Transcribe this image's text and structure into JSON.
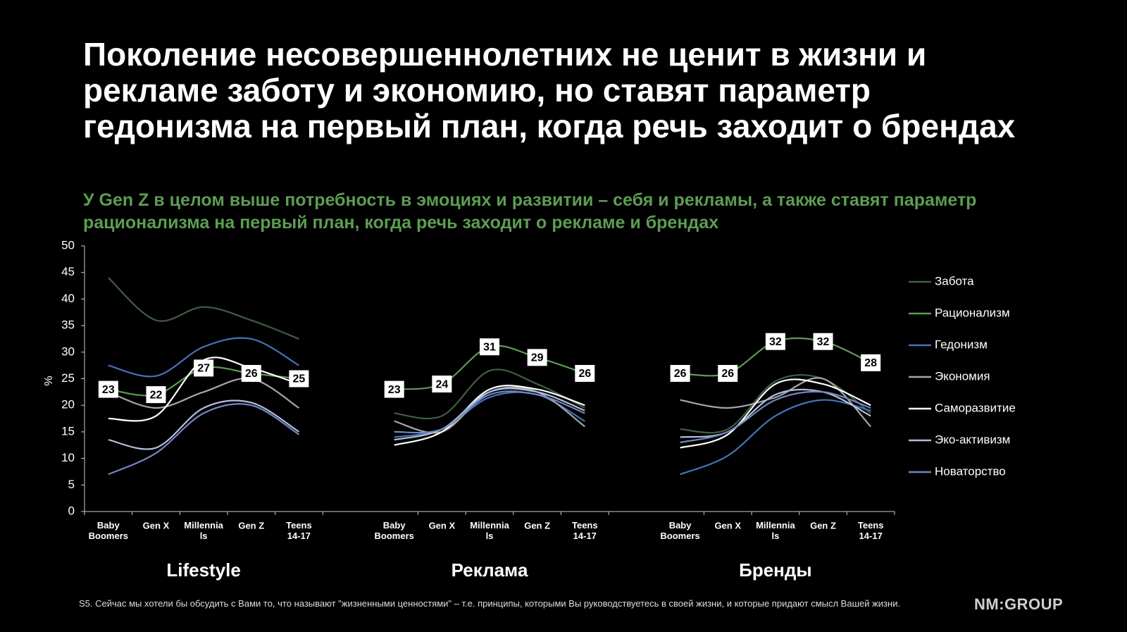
{
  "chart_data": {
    "type": "line",
    "title": "Поколение несовершеннолетних не ценит в жизни и рекламе заботу и экономию, но ставят параметр гедонизма на первый план, когда речь заходит о брендах",
    "subtitle": "У Gen Z в целом выше потребность в эмоциях и развитии – себя и рекламы, а также ставят параметр рационализма на первый план, когда речь заходит о рекламе и брендах",
    "y_label": "%",
    "categories": [
      "Baby\nBoomers",
      "Gen X",
      "Millennia\nls",
      "Gen Z",
      "Teens\n14-17",
      null,
      "Baby\nBoomers",
      "Gen X",
      "Millennia\nls",
      "Gen Z",
      "Teens\n14-17",
      null,
      "Baby\nBoomers",
      "Gen X",
      "Millennia\nls",
      "Gen Z",
      "Teens\n14-17"
    ],
    "group_labels": [
      "Lifestyle",
      "Реклама",
      "Бренды"
    ],
    "ylim": [
      0,
      50
    ],
    "yticks": [
      0,
      5,
      10,
      15,
      20,
      25,
      30,
      35,
      40,
      45,
      50
    ],
    "grid": false,
    "legend": "right",
    "series": [
      {
        "name": "Забота",
        "color": "#3f5e42",
        "values": [
          44,
          36,
          38.5,
          36,
          32.5,
          null,
          18.5,
          18,
          26.5,
          24,
          19.5,
          null,
          15.5,
          15.5,
          24.5,
          25,
          18.5
        ]
      },
      {
        "name": "Рационализм",
        "color": "#5d9c54",
        "data_labels": true,
        "values": [
          23,
          22,
          27,
          26,
          25,
          null,
          23,
          24,
          31,
          29,
          26,
          null,
          26,
          26,
          32,
          32,
          28
        ]
      },
      {
        "name": "Гедонизм",
        "color": "#4673b8",
        "values": [
          27.5,
          25.5,
          31,
          32.5,
          27.5,
          null,
          14,
          15.5,
          21.5,
          22,
          17,
          null,
          7,
          10.5,
          18,
          21,
          19
        ]
      },
      {
        "name": "Экономия",
        "color": "#a6a6a6",
        "values": [
          22.5,
          19.5,
          22.5,
          25,
          19.5,
          null,
          17,
          15,
          22.5,
          22.5,
          16,
          null,
          21,
          19.5,
          21.5,
          25,
          16
        ]
      },
      {
        "name": "Саморазвитие",
        "color": "#ffffff",
        "values": [
          17.5,
          18,
          28.5,
          27,
          24,
          null,
          12.5,
          15,
          23,
          23,
          20,
          null,
          12,
          14.5,
          24,
          24,
          20
        ]
      },
      {
        "name": "Эко-активизм",
        "color": "#b4bedc",
        "values": [
          13.5,
          12,
          19.5,
          20.5,
          15,
          null,
          13.5,
          15.5,
          22.5,
          22.5,
          19,
          null,
          14,
          15,
          22,
          22.5,
          18
        ]
      },
      {
        "name": "Новаторство",
        "color": "#7088c0",
        "values": [
          7,
          11,
          18.5,
          20,
          14.5,
          null,
          15,
          15.5,
          22,
          22,
          18.5,
          null,
          13,
          15,
          21,
          22.5,
          19.5
        ]
      }
    ]
  },
  "footnote": "S5. Сейчас мы хотели бы обсудить с Вами то, что называют \"жизненными ценностями\" – т.е. принципы, которыми Вы руководствуетесь в своей жизни, и которые придают смысл Вашей жизни.",
  "logo": "NM:GROUP"
}
